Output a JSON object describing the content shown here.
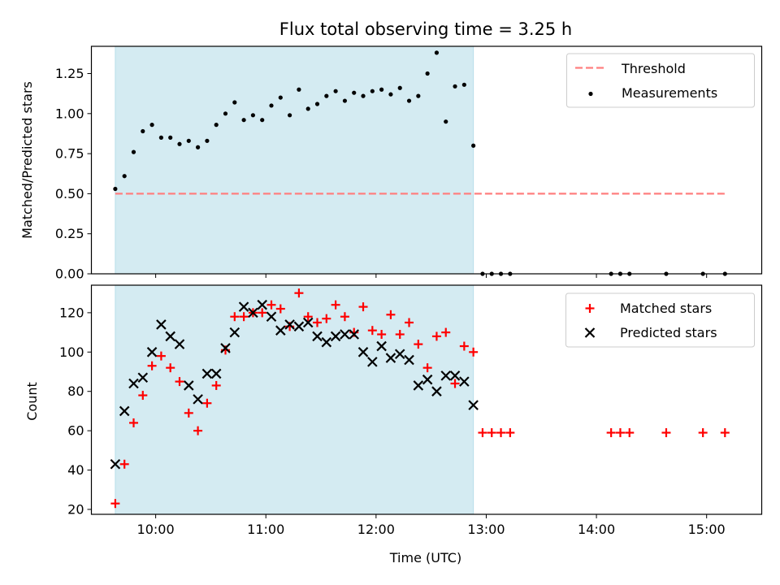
{
  "chart_data": [
    {
      "type": "scatter",
      "title": "Flux total observing time = 3.25 h",
      "xlabel": "",
      "ylabel": "Matched/Predicted stars",
      "xlim": [
        "09:25",
        "15:30"
      ],
      "ylim": [
        0,
        1.42
      ],
      "yticks": [
        0.0,
        0.25,
        0.5,
        0.75,
        1.0,
        1.25
      ],
      "ytick_labels": [
        "0.00",
        "0.25",
        "0.50",
        "0.75",
        "1.00",
        "1.25"
      ],
      "shaded_span": {
        "start": "09:38",
        "end": "12:53",
        "color": "#add8e6"
      },
      "legend": {
        "placement": "upper right"
      },
      "series": [
        {
          "name": "Threshold",
          "kind": "line",
          "style": "dashed",
          "color": "#ff7f7f",
          "x": [
            "09:38",
            "15:11"
          ],
          "values": [
            0.5,
            0.5
          ]
        },
        {
          "name": "Measurements",
          "kind": "scatter",
          "color": "#000000",
          "x": [
            "09:38",
            "09:43",
            "09:48",
            "09:53",
            "09:58",
            "10:03",
            "10:08",
            "10:13",
            "10:18",
            "10:23",
            "10:28",
            "10:33",
            "10:38",
            "10:43",
            "10:48",
            "10:53",
            "10:58",
            "11:03",
            "11:08",
            "11:13",
            "11:18",
            "11:23",
            "11:28",
            "11:33",
            "11:38",
            "11:43",
            "11:48",
            "11:53",
            "11:58",
            "12:03",
            "12:08",
            "12:13",
            "12:18",
            "12:23",
            "12:28",
            "12:33",
            "12:38",
            "12:43",
            "12:48",
            "12:53",
            "12:58",
            "13:03",
            "13:08",
            "13:13",
            "14:08",
            "14:13",
            "14:18",
            "14:38",
            "14:58",
            "15:10"
          ],
          "values": [
            0.53,
            0.61,
            0.76,
            0.89,
            0.93,
            0.85,
            0.85,
            0.81,
            0.83,
            0.79,
            0.83,
            0.93,
            1.0,
            1.07,
            0.96,
            0.99,
            0.96,
            1.05,
            1.1,
            0.99,
            1.15,
            1.03,
            1.06,
            1.11,
            1.14,
            1.08,
            1.13,
            1.11,
            1.14,
            1.15,
            1.12,
            1.16,
            1.08,
            1.11,
            1.25,
            1.38,
            0.95,
            1.17,
            1.18,
            0.8,
            0.0,
            0.0,
            0.0,
            0.0,
            0.0,
            0.0,
            0.0,
            0.0,
            0.0,
            0.0
          ]
        }
      ]
    },
    {
      "type": "scatter",
      "title": "",
      "xlabel": "Time (UTC)",
      "ylabel": "Count",
      "xlim": [
        "09:25",
        "15:30"
      ],
      "ylim": [
        17.5,
        134
      ],
      "yticks": [
        20,
        40,
        60,
        80,
        100,
        120
      ],
      "ytick_labels": [
        "20",
        "40",
        "60",
        "80",
        "100",
        "120"
      ],
      "xticks": [
        "10:00",
        "11:00",
        "12:00",
        "13:00",
        "14:00",
        "15:00"
      ],
      "xtick_labels": [
        "10:00",
        "11:00",
        "12:00",
        "13:00",
        "14:00",
        "15:00"
      ],
      "shaded_span": {
        "start": "09:38",
        "end": "12:53",
        "color": "#add8e6"
      },
      "legend": {
        "placement": "upper right"
      },
      "series": [
        {
          "name": "Matched stars",
          "marker": "+",
          "color": "#ff0000",
          "x": [
            "09:38",
            "09:43",
            "09:48",
            "09:53",
            "09:58",
            "10:03",
            "10:08",
            "10:13",
            "10:18",
            "10:23",
            "10:28",
            "10:33",
            "10:38",
            "10:43",
            "10:48",
            "10:53",
            "10:58",
            "11:03",
            "11:08",
            "11:13",
            "11:18",
            "11:23",
            "11:28",
            "11:33",
            "11:38",
            "11:43",
            "11:48",
            "11:53",
            "11:58",
            "12:03",
            "12:08",
            "12:13",
            "12:18",
            "12:23",
            "12:28",
            "12:33",
            "12:38",
            "12:43",
            "12:48",
            "12:53",
            "12:58",
            "13:03",
            "13:08",
            "13:13",
            "14:08",
            "14:13",
            "14:18",
            "14:38",
            "14:58",
            "15:10"
          ],
          "values": [
            23,
            43,
            64,
            78,
            93,
            98,
            92,
            85,
            69,
            60,
            74,
            83,
            101,
            118,
            118,
            120,
            120,
            124,
            122,
            113,
            130,
            118,
            115,
            117,
            124,
            118,
            110,
            123,
            111,
            109,
            119,
            109,
            115,
            104,
            92,
            108,
            110,
            84,
            103,
            100,
            59,
            59,
            59,
            59,
            59,
            59,
            59,
            59,
            59,
            59
          ]
        },
        {
          "name": "Predicted stars",
          "marker": "x",
          "color": "#000000",
          "x": [
            "09:38",
            "09:43",
            "09:48",
            "09:53",
            "09:58",
            "10:03",
            "10:08",
            "10:13",
            "10:18",
            "10:23",
            "10:28",
            "10:33",
            "10:38",
            "10:43",
            "10:48",
            "10:53",
            "10:58",
            "11:03",
            "11:08",
            "11:13",
            "11:18",
            "11:23",
            "11:28",
            "11:33",
            "11:38",
            "11:43",
            "11:48",
            "11:53",
            "11:58",
            "12:03",
            "12:08",
            "12:13",
            "12:18",
            "12:23",
            "12:28",
            "12:33",
            "12:38",
            "12:43",
            "12:48",
            "12:53"
          ],
          "values": [
            43,
            70,
            84,
            87,
            100,
            114,
            108,
            104,
            83,
            76,
            89,
            89,
            102,
            110,
            123,
            120,
            124,
            118,
            111,
            114,
            113,
            115,
            108,
            105,
            108,
            109,
            109,
            100,
            95,
            103,
            97,
            99,
            96,
            83,
            86,
            80,
            88,
            88,
            85,
            73
          ]
        }
      ]
    }
  ]
}
